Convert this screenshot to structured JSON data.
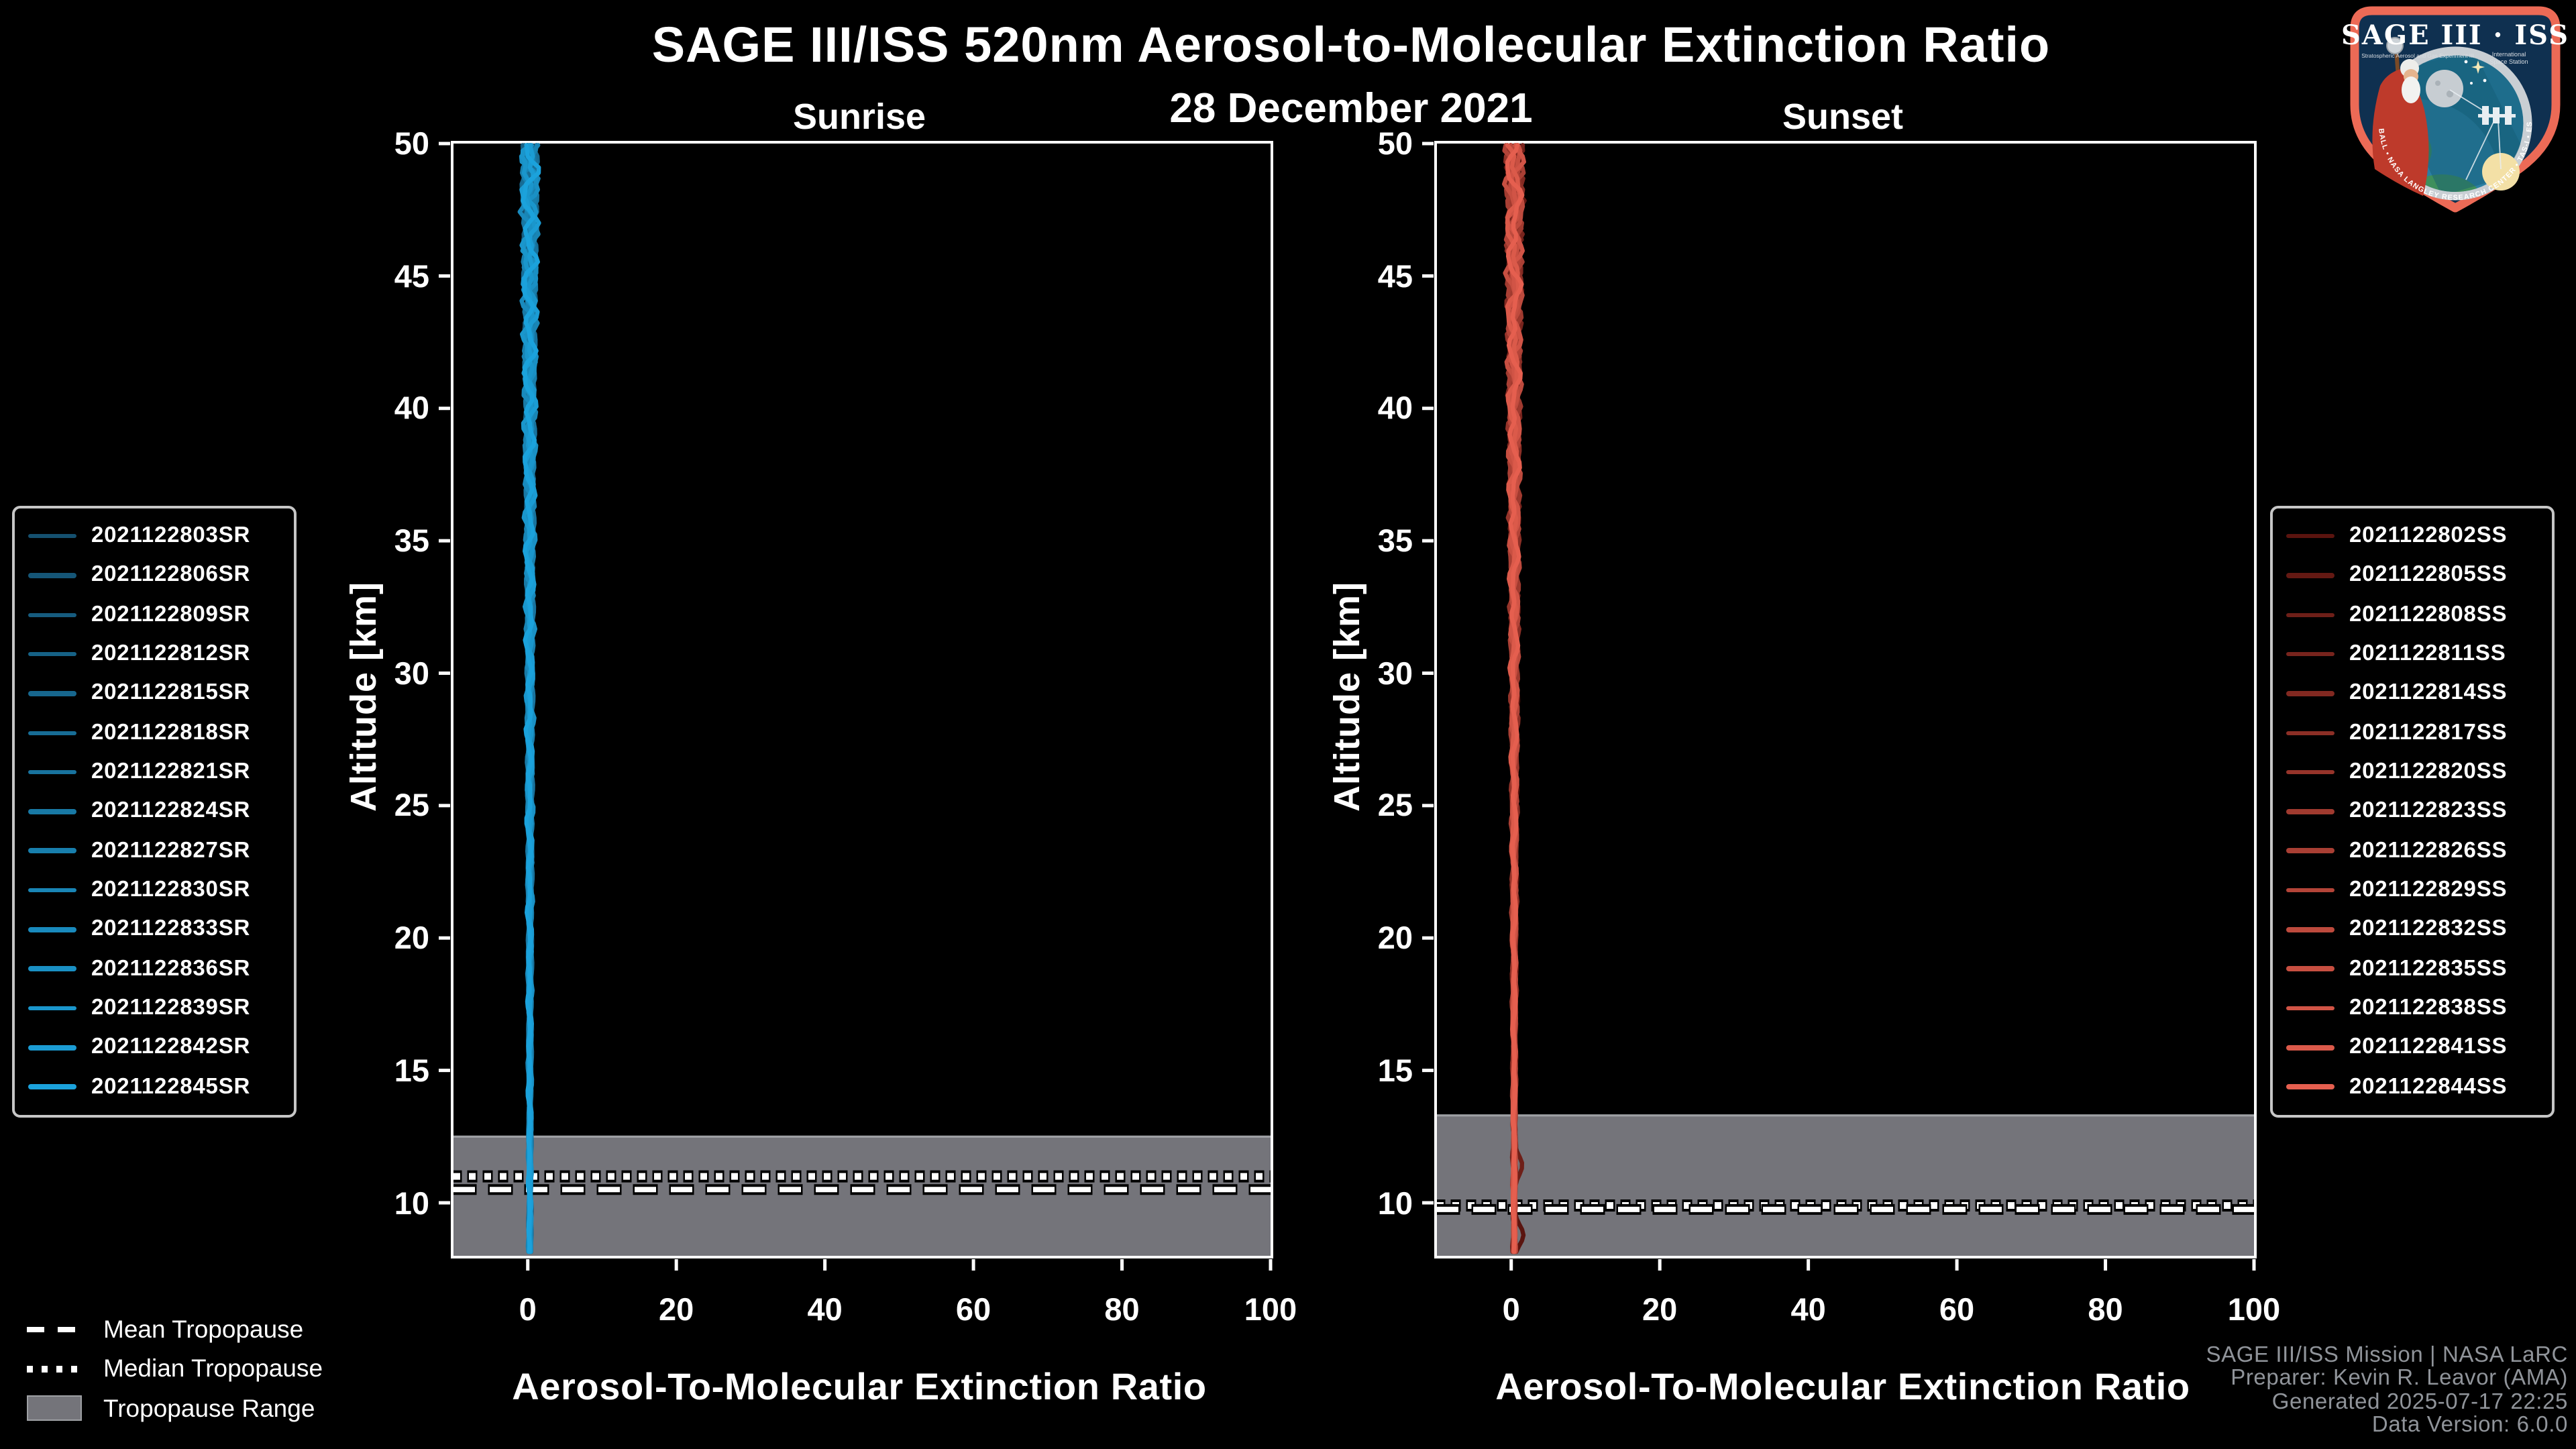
{
  "header": {
    "title": "SAGE III/ISS 520nm Aerosol-to-Molecular Extinction Ratio",
    "date": "28 December 2021"
  },
  "logo": {
    "title": "SAGE III · ISS",
    "subtitle_left": "Stratospheric Aerosol and Gas Experiment III",
    "subtitle_right_1": "International",
    "subtitle_right_2": "Space Station",
    "ring_text": "BALL  •  NASA LANGLEY RESEARCH CENTER  •  TAS-I  •  ESA",
    "border_color": "#EC6A56",
    "bg_color": "#0F3050"
  },
  "styles": {
    "band_color": "#74747A",
    "band_edge_color": "#9EA0A4",
    "axis_color": "#FFFFFF",
    "footer_color": "#90949A"
  },
  "tropopause_legend": {
    "items": [
      {
        "label": "Mean Tropopause",
        "style": "dashed"
      },
      {
        "label": "Median Tropopause",
        "style": "dotted"
      },
      {
        "label": "Tropopause Range",
        "style": "band"
      }
    ]
  },
  "footer": {
    "lines": [
      "SAGE III/ISS Mission | NASA LaRC",
      "Preparer: Kevin R. Leavor (AMA)",
      "Generated 2025-07-17 22:25",
      "Data Version: 6.0.0"
    ]
  },
  "chart_data": [
    {
      "type": "line",
      "panel": "sunrise",
      "title": "Sunrise",
      "xlabel": "Aerosol-To-Molecular Extinction Ratio",
      "ylabel": "Altitude [km]",
      "xlim": [
        -10,
        100
      ],
      "ylim": [
        8,
        50
      ],
      "xticks": [
        0,
        20,
        40,
        60,
        80,
        100
      ],
      "yticks": [
        10,
        15,
        20,
        25,
        30,
        35,
        40,
        45,
        50
      ],
      "grid": false,
      "legend_position": "outside-left",
      "profile_center": 0.3,
      "profile_description": "15 near-vertical extinction-ratio profiles hugging 0 from 8 to 50 km; noise amplitude grows from ~0.15 at 8 km to ~1.5 at 50 km",
      "tropopause": {
        "mean_km": 10.5,
        "median_km": 11.0,
        "range_top_km": 12.5,
        "range_bottom_km": 8.0
      },
      "series": [
        {
          "name": "2021122803SR",
          "color": "#15506F"
        },
        {
          "name": "2021122806SR",
          "color": "#155677"
        },
        {
          "name": "2021122809SR",
          "color": "#165C7F"
        },
        {
          "name": "2021122812SR",
          "color": "#166286"
        },
        {
          "name": "2021122815SR",
          "color": "#17678E"
        },
        {
          "name": "2021122818SR",
          "color": "#176D96"
        },
        {
          "name": "2021122821SR",
          "color": "#18739E"
        },
        {
          "name": "2021122824SR",
          "color": "#1879A5"
        },
        {
          "name": "2021122827SR",
          "color": "#187FAD"
        },
        {
          "name": "2021122830SR",
          "color": "#1985B5"
        },
        {
          "name": "2021122833SR",
          "color": "#198ABD"
        },
        {
          "name": "2021122836SR",
          "color": "#1A90C4"
        },
        {
          "name": "2021122839SR",
          "color": "#1A96CC"
        },
        {
          "name": "2021122842SR",
          "color": "#1B9CD4"
        },
        {
          "name": "2021122845SR",
          "color": "#1BA2DC"
        }
      ]
    },
    {
      "type": "line",
      "panel": "sunset",
      "title": "Sunset",
      "xlabel": "Aerosol-To-Molecular Extinction Ratio",
      "ylabel": "Altitude [km]",
      "xlim": [
        -10,
        100
      ],
      "ylim": [
        8,
        50
      ],
      "xticks": [
        0,
        20,
        40,
        60,
        80,
        100
      ],
      "yticks": [
        10,
        15,
        20,
        25,
        30,
        35,
        40,
        45,
        50
      ],
      "grid": false,
      "legend_position": "outside-right",
      "profile_center": 0.4,
      "profile_description": "15 near-vertical extinction-ratio profiles hugging 0 from 8 to 50 km; small rightward excursions near 11.5 km and 9 km; mean and median tropopause lines overlap near 10 km",
      "tropopause": {
        "mean_km": 9.75,
        "median_km": 9.9,
        "range_top_km": 13.3,
        "range_bottom_km": 8.0
      },
      "series": [
        {
          "name": "2021122802SS",
          "color": "#5A140F"
        },
        {
          "name": "2021122805SS",
          "color": "#641913"
        },
        {
          "name": "2021122808SS",
          "color": "#6E1F18"
        },
        {
          "name": "2021122811SS",
          "color": "#78241D"
        },
        {
          "name": "2021122814SS",
          "color": "#822921"
        },
        {
          "name": "2021122817SS",
          "color": "#8C2F26"
        },
        {
          "name": "2021122820SS",
          "color": "#96342A"
        },
        {
          "name": "2021122823SS",
          "color": "#A03A2F"
        },
        {
          "name": "2021122826SS",
          "color": "#A93F34"
        },
        {
          "name": "2021122829SS",
          "color": "#B34438"
        },
        {
          "name": "2021122832SS",
          "color": "#BD4A3D"
        },
        {
          "name": "2021122835SS",
          "color": "#C74F41"
        },
        {
          "name": "2021122838SS",
          "color": "#D15446"
        },
        {
          "name": "2021122841SS",
          "color": "#DB5A4A"
        },
        {
          "name": "2021122844SS",
          "color": "#E55F4F"
        }
      ]
    }
  ]
}
